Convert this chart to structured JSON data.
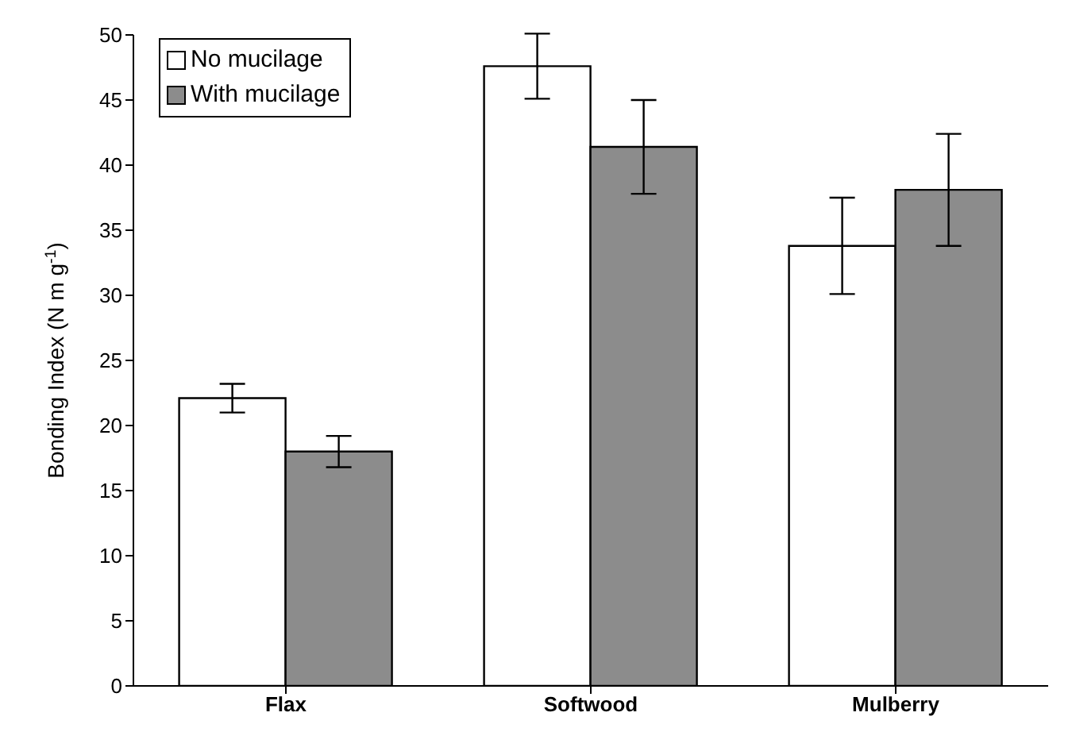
{
  "chart_data": {
    "type": "bar",
    "ylabel": "Bonding Index (N m g$^{-1}$)",
    "categories": [
      "Flax",
      "Softwood",
      "Mulberry"
    ],
    "series": [
      {
        "name": "No mucilage",
        "color": "#ffffff",
        "values": [
          22.1,
          47.6,
          33.8
        ],
        "errors": [
          1.1,
          2.5,
          3.7
        ]
      },
      {
        "name": "With mucilage",
        "color": "#8c8c8c",
        "values": [
          18.0,
          41.4,
          38.1
        ],
        "errors": [
          1.2,
          3.6,
          4.3
        ]
      }
    ],
    "ylim": [
      0,
      50
    ],
    "yticks": [
      0,
      5,
      10,
      15,
      20,
      25,
      30,
      35,
      40,
      45,
      50
    ],
    "grid": false,
    "legend": "top left"
  }
}
